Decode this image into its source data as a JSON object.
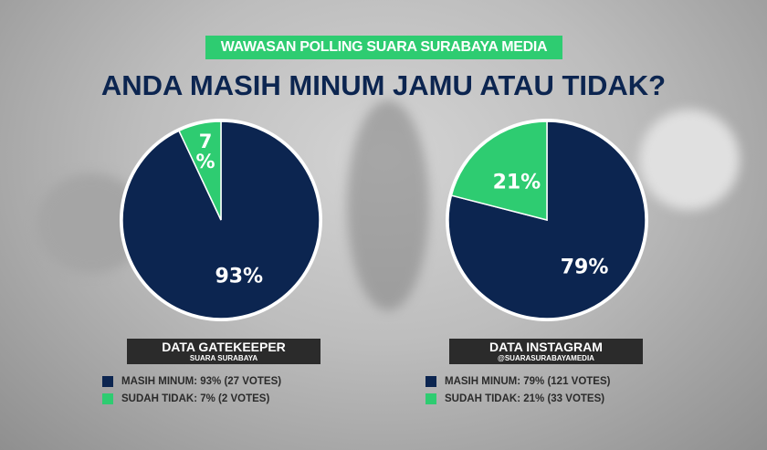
{
  "header": {
    "tag": "WAWASAN POLLING SUARA SURABAYA MEDIA",
    "title": "ANDA MASIH MINUM JAMU ATAU TIDAK?"
  },
  "colors": {
    "masih_minum": "#0c2550",
    "sudah_tidak": "#2ecc71"
  },
  "chart_data": [
    {
      "type": "pie",
      "title": "DATA GATEKEEPER",
      "subtitle": "SUARA SURABAYA",
      "slices": [
        {
          "name": "MASIH MINUM",
          "value": 93,
          "votes": 27,
          "label": "93%"
        },
        {
          "name": "SUDAH TIDAK",
          "value": 7,
          "votes": 2,
          "label": "7\n%"
        }
      ],
      "legend": [
        "MASIH MINUM: 93% (27 VOTES)",
        "SUDAH TIDAK: 7% (2 VOTES)"
      ],
      "legend_placement": "bottom"
    },
    {
      "type": "pie",
      "title": "DATA INSTAGRAM",
      "subtitle": "@SUARASURABAYAMEDIA",
      "slices": [
        {
          "name": "MASIH MINUM",
          "value": 79,
          "votes": 121,
          "label": "79%"
        },
        {
          "name": "SUDAH TIDAK",
          "value": 21,
          "votes": 33,
          "label": "21%"
        }
      ],
      "legend": [
        "MASIH MINUM: 79% (121 VOTES)",
        "SUDAH TIDAK: 21% (33 VOTES)"
      ],
      "legend_placement": "bottom"
    }
  ]
}
